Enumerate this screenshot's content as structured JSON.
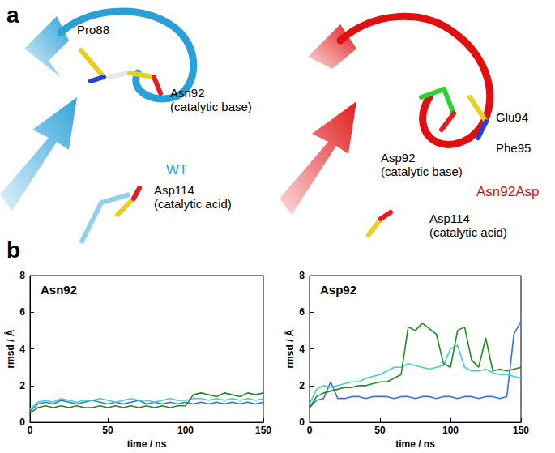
{
  "panel_labels": [
    "a",
    "b"
  ],
  "panel_a": {
    "left": {
      "title": "WT",
      "title_color": "#29a0d8",
      "labels": [
        {
          "lines": [
            "Pro88"
          ]
        },
        {
          "lines": [
            "Asn92",
            "(catalytic base)"
          ]
        },
        {
          "lines": [
            "Asp114",
            "(catalytic acid)"
          ]
        }
      ]
    },
    "right": {
      "title": "Asn92Asp",
      "title_color": "#e01010",
      "labels": [
        {
          "lines": [
            "Glu94"
          ]
        },
        {
          "lines": [
            "Phe95"
          ]
        },
        {
          "lines": [
            "Asp92",
            "(catalytic base)"
          ]
        },
        {
          "lines": [
            "Asp114",
            "(catalytic acid)"
          ]
        }
      ]
    }
  },
  "chart_data": [
    {
      "type": "line",
      "title": "Asn92",
      "x_label": "time / ns",
      "y_label": "rmsd / Å",
      "x": [
        0,
        5,
        10,
        15,
        20,
        25,
        30,
        35,
        40,
        45,
        50,
        55,
        60,
        65,
        70,
        75,
        80,
        85,
        90,
        95,
        100,
        105,
        110,
        115,
        120,
        125,
        130,
        135,
        140,
        145,
        150
      ],
      "series": [
        {
          "color": "#3a6fe0",
          "values": [
            0.6,
            1.0,
            1.1,
            1.0,
            1.2,
            1.1,
            1.0,
            1.1,
            1.2,
            1.1,
            1.0,
            1.1,
            1.0,
            1.1,
            1.2,
            1.0,
            1.1,
            1.0,
            1.1,
            1.0,
            1.1,
            1.0,
            1.1,
            1.0,
            1.1,
            1.0,
            1.1,
            1.0,
            1.1,
            1.0,
            1.1
          ]
        },
        {
          "color": "#40d0d0",
          "values": [
            0.7,
            1.1,
            1.2,
            1.1,
            1.3,
            1.2,
            1.1,
            1.2,
            1.2,
            1.3,
            1.2,
            1.1,
            1.2,
            1.3,
            1.2,
            1.2,
            1.1,
            1.2,
            1.3,
            1.2,
            1.2,
            1.3,
            1.3,
            1.2,
            1.3,
            1.2,
            1.3,
            1.2,
            1.3,
            1.2,
            1.3
          ]
        },
        {
          "color": "#1e8c1e",
          "values": [
            0.5,
            0.8,
            0.9,
            0.8,
            0.9,
            0.8,
            0.9,
            0.8,
            0.8,
            0.9,
            0.8,
            0.9,
            0.8,
            0.9,
            0.8,
            0.9,
            0.8,
            0.9,
            0.8,
            0.9,
            0.9,
            1.5,
            1.6,
            1.5,
            1.4,
            1.6,
            1.5,
            1.4,
            1.6,
            1.5,
            1.6
          ]
        }
      ],
      "xlim": [
        0,
        150
      ],
      "xticks": [
        0,
        50,
        100,
        150
      ],
      "ylim": [
        0,
        8
      ],
      "yticks": [
        0,
        2,
        4,
        6,
        8
      ]
    },
    {
      "type": "line",
      "title": "Asp92",
      "x_label": "time / ns",
      "y_label": "rmsd / Å",
      "x": [
        0,
        5,
        10,
        15,
        20,
        25,
        30,
        35,
        40,
        45,
        50,
        55,
        60,
        65,
        70,
        75,
        80,
        85,
        90,
        95,
        100,
        105,
        110,
        115,
        120,
        125,
        130,
        135,
        140,
        145,
        150
      ],
      "series": [
        {
          "color": "#3a6fe0",
          "values": [
            0.8,
            1.2,
            1.3,
            2.2,
            1.3,
            1.3,
            1.4,
            1.4,
            1.3,
            1.4,
            1.4,
            1.4,
            1.3,
            1.4,
            1.4,
            1.3,
            1.4,
            1.4,
            1.3,
            1.4,
            1.4,
            1.3,
            1.4,
            1.4,
            1.3,
            1.4,
            1.4,
            1.3,
            1.4,
            4.8,
            5.5
          ]
        },
        {
          "color": "#40d0d0",
          "values": [
            1.0,
            1.8,
            2.0,
            1.9,
            2.0,
            2.1,
            2.2,
            2.2,
            2.4,
            2.5,
            2.6,
            2.8,
            3.0,
            3.0,
            3.2,
            3.1,
            3.0,
            2.9,
            3.0,
            3.1,
            4.0,
            4.2,
            3.0,
            2.8,
            2.8,
            2.9,
            2.7,
            2.6,
            2.6,
            2.5,
            2.4
          ]
        },
        {
          "color": "#1e8c1e",
          "values": [
            0.8,
            1.4,
            1.6,
            1.7,
            1.8,
            1.9,
            1.9,
            2.0,
            2.0,
            2.1,
            2.2,
            2.2,
            2.4,
            2.6,
            5.2,
            5.0,
            5.4,
            5.1,
            4.8,
            3.2,
            3.0,
            5.0,
            5.2,
            3.4,
            3.0,
            4.6,
            2.8,
            2.9,
            2.8,
            2.9,
            3.0
          ]
        }
      ],
      "xlim": [
        0,
        150
      ],
      "xticks": [
        0,
        50,
        100,
        150
      ],
      "ylim": [
        0,
        8
      ],
      "yticks": [
        0,
        2,
        4,
        6,
        8
      ]
    }
  ]
}
